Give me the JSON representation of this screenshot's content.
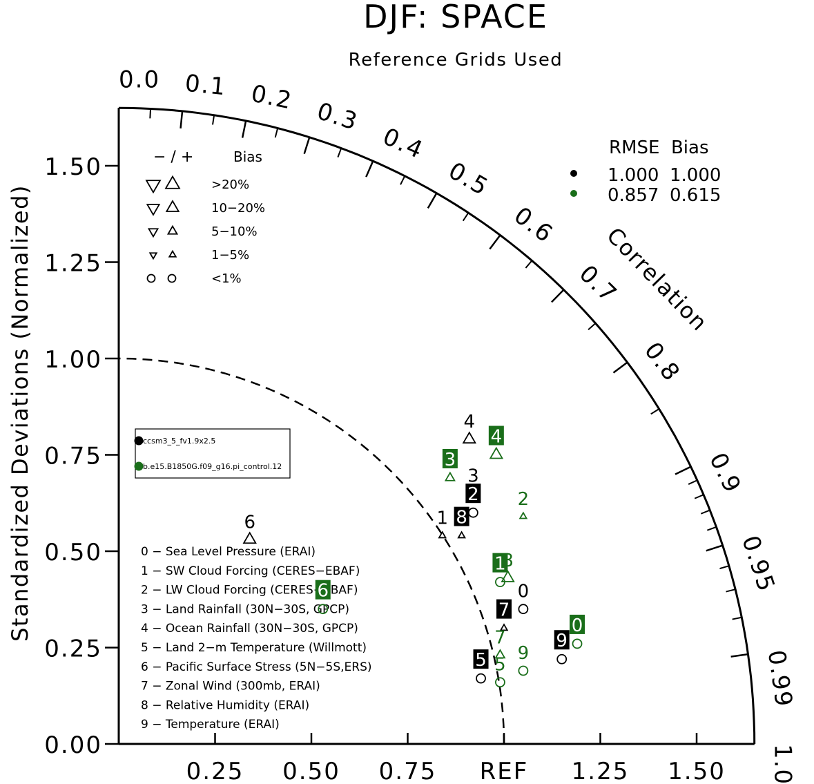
{
  "chart_data": {
    "type": "scatter",
    "plot_kind": "Taylor diagram",
    "title": "DJF: SPACE",
    "subtitle": "Reference Grids Used",
    "ylabel": "Standardized Deviations (Normalized)",
    "arc_label": "Correlation",
    "ylim": [
      0,
      1.65
    ],
    "y_ticks": [
      "0.00",
      "0.25",
      "0.50",
      "0.75",
      "1.00",
      "1.25",
      "1.50"
    ],
    "x_ticks": [
      "0.25",
      "0.50",
      "0.75",
      "REF",
      "1.25",
      "1.50"
    ],
    "x_tick_values": [
      0.25,
      0.5,
      0.75,
      1.0,
      1.25,
      1.5
    ],
    "correlation_labels": [
      {
        "value": 0.0,
        "label": "0.0"
      },
      {
        "value": 0.1,
        "label": "0.1"
      },
      {
        "value": 0.2,
        "label": "0.2"
      },
      {
        "value": 0.3,
        "label": "0.3"
      },
      {
        "value": 0.4,
        "label": "0.4"
      },
      {
        "value": 0.5,
        "label": "0.5"
      },
      {
        "value": 0.6,
        "label": "0.6"
      },
      {
        "value": 0.7,
        "label": "0.7"
      },
      {
        "value": 0.8,
        "label": "0.8"
      },
      {
        "value": 0.9,
        "label": "0.9"
      },
      {
        "value": 0.95,
        "label": "0.95"
      },
      {
        "value": 0.99,
        "label": "0.99"
      },
      {
        "value": 1.0,
        "label": "1.0"
      }
    ],
    "correlation_minor_ticks": [
      0.05,
      0.15,
      0.25,
      0.35,
      0.45,
      0.55,
      0.65,
      0.75,
      0.85,
      0.91,
      0.92,
      0.93,
      0.94,
      0.96,
      0.97,
      0.98
    ],
    "ref_arc_radius": 1.0,
    "outer_arc_radius": 1.65,
    "bias_legend": {
      "header": [
        "− / +",
        "Bias"
      ],
      "rows": [
        {
          "label": ">20%",
          "shape": "triangle",
          "size": "xl"
        },
        {
          "label": "10−20%",
          "shape": "triangle",
          "size": "l"
        },
        {
          "label": "5−10%",
          "shape": "triangle",
          "size": "m"
        },
        {
          "label": "1−5%",
          "shape": "triangle",
          "size": "s"
        },
        {
          "label": "<1%",
          "shape": "circle",
          "size": "m"
        }
      ]
    },
    "rmse_legend": {
      "header": "RMSE  Bias",
      "rows": [
        {
          "color": "#000000",
          "rmse": "1.000",
          "bias": "1.000"
        },
        {
          "color": "#1a6e1a",
          "rmse": "0.857",
          "bias": "0.615"
        }
      ]
    },
    "cases": [
      {
        "name": "ccsm3_5_fv1.9x2.5",
        "color": "#000000"
      },
      {
        "name": "b.e15.B1850G.f09_g16.pi_control.12",
        "color": "#1a6e1a"
      }
    ],
    "variables": [
      "0 − Sea Level Pressure (ERAI)",
      "1 − SW Cloud Forcing (CERES−EBAF)",
      "2 − LW Cloud Forcing (CERES−EBAF)",
      "3 − Land Rainfall (30N−30S, GPCP)",
      "4 − Ocean Rainfall (30N−30S, GPCP)",
      "5 − Land 2−m Temperature (Willmott)",
      "6 − Pacific Surface Stress (5N−5S,ERS)",
      "7 − Zonal Wind (300mb, ERAI)",
      "8 − Relative Humidity (ERAI)",
      "9 − Temperature (ERAI)"
    ],
    "series": [
      {
        "name": "ccsm3_5_fv1.9x2.5",
        "color": "#000000",
        "points": [
          {
            "id": "0",
            "x": 1.05,
            "y": 0.35,
            "marker": "circle",
            "size": "m",
            "boxed": false
          },
          {
            "id": "1",
            "x": 0.84,
            "y": 0.54,
            "marker": "up",
            "size": "s",
            "boxed": false
          },
          {
            "id": "2",
            "x": 0.92,
            "y": 0.6,
            "marker": "circle",
            "size": "m",
            "boxed": true
          },
          {
            "id": "3",
            "x": 0.92,
            "y": 0.65,
            "marker": "none",
            "size": "m",
            "boxed": false
          },
          {
            "id": "4",
            "x": 0.91,
            "y": 0.79,
            "marker": "up",
            "size": "l",
            "boxed": false
          },
          {
            "id": "5",
            "x": 0.94,
            "y": 0.17,
            "marker": "circle",
            "size": "m",
            "boxed": true
          },
          {
            "id": "6",
            "x": 0.34,
            "y": 0.53,
            "marker": "up",
            "size": "l",
            "boxed": false
          },
          {
            "id": "7",
            "x": 1.0,
            "y": 0.3,
            "marker": "up",
            "size": "s",
            "boxed": true
          },
          {
            "id": "8",
            "x": 0.89,
            "y": 0.54,
            "marker": "up",
            "size": "s",
            "boxed": true
          },
          {
            "id": "9",
            "x": 1.15,
            "y": 0.22,
            "marker": "circle",
            "size": "m",
            "boxed": true
          }
        ]
      },
      {
        "name": "b.e15.B1850G.f09_g16.pi_control.12",
        "color": "#1a6e1a",
        "points": [
          {
            "id": "0",
            "x": 1.19,
            "y": 0.26,
            "marker": "circle",
            "size": "m",
            "boxed": true
          },
          {
            "id": "1",
            "x": 0.99,
            "y": 0.42,
            "marker": "circle",
            "size": "m",
            "boxed": true
          },
          {
            "id": "2",
            "x": 1.05,
            "y": 0.59,
            "marker": "up",
            "size": "s",
            "boxed": false
          },
          {
            "id": "3",
            "x": 0.86,
            "y": 0.69,
            "marker": "up",
            "size": "m",
            "boxed": true
          },
          {
            "id": "4",
            "x": 0.98,
            "y": 0.75,
            "marker": "up",
            "size": "l",
            "boxed": true
          },
          {
            "id": "5",
            "x": 0.99,
            "y": 0.16,
            "marker": "circle",
            "size": "m",
            "boxed": false
          },
          {
            "id": "6",
            "x": 0.53,
            "y": 0.35,
            "marker": "circle",
            "size": "m",
            "boxed": true
          },
          {
            "id": "7",
            "x": 0.99,
            "y": 0.23,
            "marker": "up",
            "size": "m",
            "boxed": false
          },
          {
            "id": "8",
            "x": 1.01,
            "y": 0.43,
            "marker": "up",
            "size": "l",
            "boxed": false
          },
          {
            "id": "9",
            "x": 1.05,
            "y": 0.19,
            "marker": "circle",
            "size": "m",
            "boxed": false
          }
        ]
      }
    ]
  }
}
